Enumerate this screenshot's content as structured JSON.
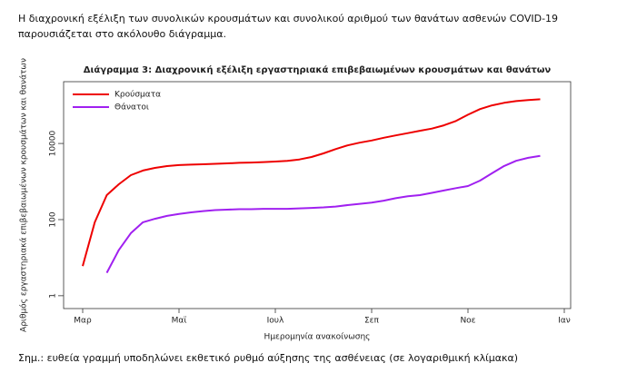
{
  "intro": "Η διαχρονική εξέλιξη των συνολικών κρουσμάτων και συνολικού αριθμού των θανάτων ασθενών COVID-19 παρουσιάζεται στο ακόλουθο διάγραμμα.",
  "chart_data": {
    "type": "line",
    "title": "Διάγραμμα 3: Διαχρονική εξέλιξη εργαστηριακά επιβεβαιωμένων κρουσμάτων και θανάτων",
    "x_label": "Ημερομηνία ανακοίνωσης",
    "y_label": "Αριθμός εργαστηριακά επιβεβαιωμένων κρουσμάτων και θανάτων",
    "categories": [
      null,
      null,
      "Μαρ",
      null,
      null,
      null,
      null,
      null,
      null,
      null,
      "Μαϊ",
      null,
      null,
      null,
      null,
      null,
      null,
      null,
      "Ιουλ",
      null,
      null,
      null,
      null,
      null,
      null,
      null,
      "Σεπ",
      null,
      null,
      null,
      null,
      null,
      null,
      null,
      "Νοε",
      null,
      null,
      null,
      null,
      null,
      null,
      null,
      "Ιαν"
    ],
    "series": [
      {
        "name": "Κρούσματα",
        "color": "#ee0000",
        "values": [
          null,
          null,
          6,
          85,
          440,
          850,
          1470,
          1950,
          2280,
          2540,
          2700,
          2780,
          2840,
          2920,
          3000,
          3100,
          3150,
          3250,
          3350,
          3500,
          3800,
          4400,
          5500,
          7100,
          8900,
          10500,
          12000,
          14100,
          16300,
          18700,
          21500,
          24600,
          29900,
          39000,
          57000,
          80000,
          100000,
          117000,
          130000,
          138000,
          145000,
          null,
          null
        ]
      },
      {
        "name": "Θάνατοι",
        "color": "#a020f0",
        "values": [
          null,
          null,
          null,
          null,
          4,
          16,
          44,
          85,
          105,
          125,
          140,
          155,
          167,
          178,
          183,
          188,
          188,
          192,
          192,
          192,
          197,
          203,
          210,
          220,
          240,
          260,
          280,
          315,
          365,
          410,
          440,
          505,
          580,
          670,
          760,
          1060,
          1650,
          2560,
          3500,
          4200,
          4700,
          null,
          null
        ]
      }
    ],
    "ylim": [
      0.46,
      420000
    ],
    "yticks": [
      1,
      100,
      10000
    ],
    "log_y": true,
    "legend": "top-left"
  },
  "note": "Σημ.: ευθεία γραμμή υποδηλώνει εκθετικό ρυθμό αύξησης της ασθένειας (σε λογαριθμική κλίμακα)"
}
